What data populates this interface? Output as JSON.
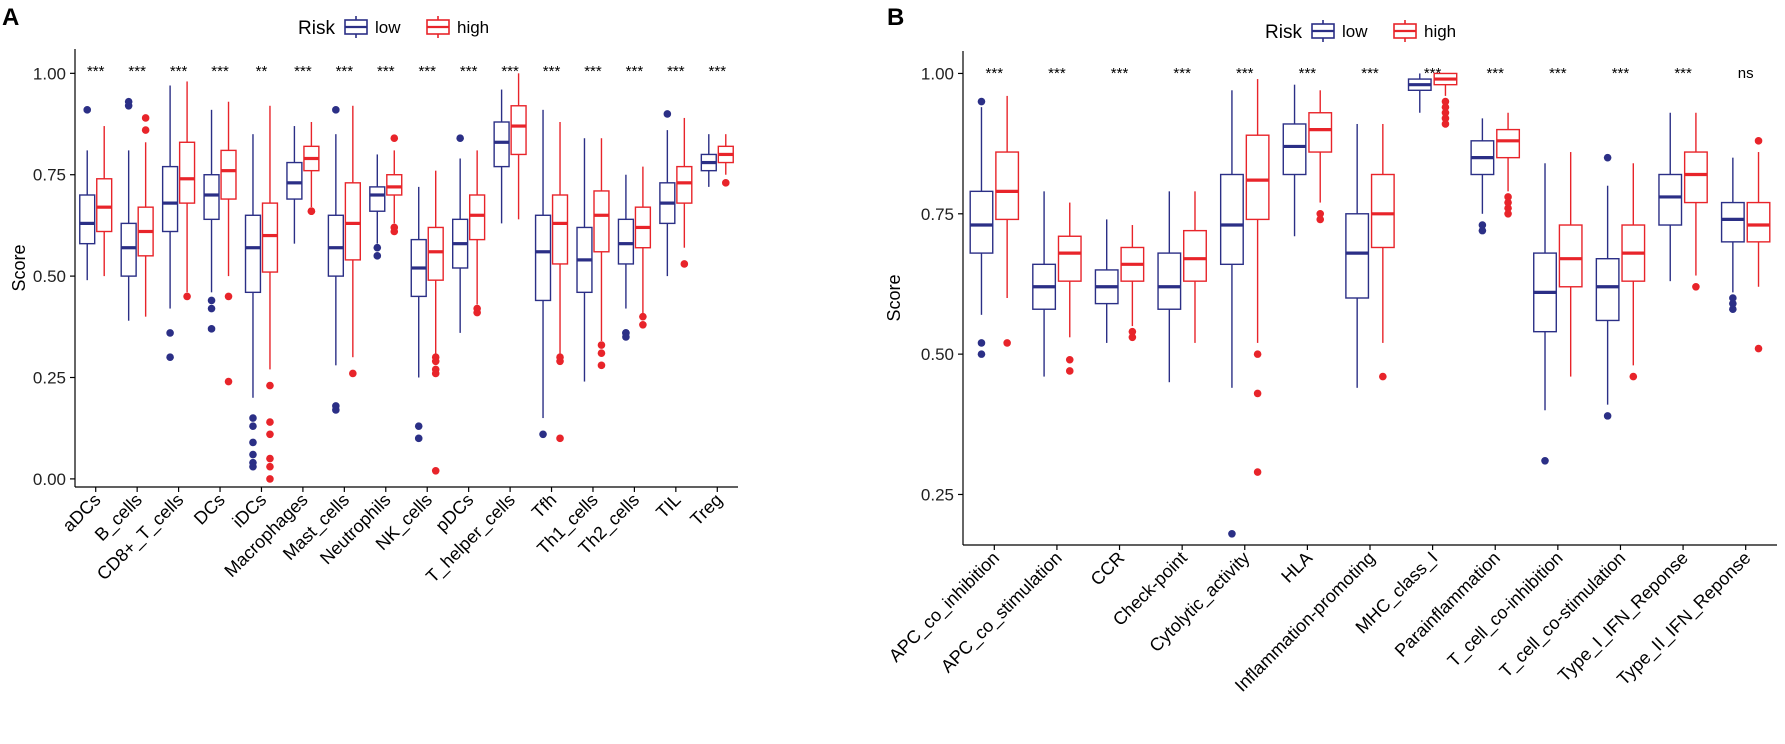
{
  "colors": {
    "low": "#2B2F86",
    "high": "#E8242A",
    "axis": "#000000"
  },
  "chart_data": [
    {
      "type": "boxplot",
      "panel": "A",
      "legend": {
        "title": "Risk",
        "entries": [
          "low",
          "high"
        ],
        "position": "top-center"
      },
      "ylabel": "Score",
      "ylim": [
        -0.02,
        1.06
      ],
      "yticks": [
        0.0,
        0.25,
        0.5,
        0.75,
        1.0
      ],
      "ytick_labels": [
        "0.00",
        "0.25",
        "0.50",
        "0.75",
        "1.00"
      ],
      "categories": [
        "aDCs",
        "B_cells",
        "CD8+_T_cells",
        "DCs",
        "iDCs",
        "Macrophages",
        "Mast_cells",
        "Neutrophils",
        "NK_cells",
        "pDCs",
        "T_helper_cells",
        "Tfh",
        "Th1_cells",
        "Th2_cells",
        "TIL",
        "Treg"
      ],
      "significance": [
        "***",
        "***",
        "***",
        "***",
        "**",
        "***",
        "***",
        "***",
        "***",
        "***",
        "***",
        "***",
        "***",
        "***",
        "***",
        "***"
      ],
      "series": [
        {
          "name": "low",
          "boxes": [
            {
              "wlo": 0.49,
              "q1": 0.58,
              "med": 0.63,
              "q3": 0.7,
              "whi": 0.81,
              "out": [
                0.91
              ]
            },
            {
              "wlo": 0.39,
              "q1": 0.5,
              "med": 0.57,
              "q3": 0.63,
              "whi": 0.81,
              "out": [
                0.92,
                0.93
              ]
            },
            {
              "wlo": 0.42,
              "q1": 0.61,
              "med": 0.68,
              "q3": 0.77,
              "whi": 0.97,
              "out": [
                0.36,
                0.3
              ]
            },
            {
              "wlo": 0.46,
              "q1": 0.64,
              "med": 0.7,
              "q3": 0.75,
              "whi": 0.91,
              "out": [
                0.44,
                0.42,
                0.37
              ]
            },
            {
              "wlo": 0.2,
              "q1": 0.46,
              "med": 0.57,
              "q3": 0.65,
              "whi": 0.85,
              "out": [
                0.15,
                0.13,
                0.09,
                0.06,
                0.04,
                0.03
              ]
            },
            {
              "wlo": 0.58,
              "q1": 0.69,
              "med": 0.73,
              "q3": 0.78,
              "whi": 0.87,
              "out": []
            },
            {
              "wlo": 0.28,
              "q1": 0.5,
              "med": 0.57,
              "q3": 0.65,
              "whi": 0.85,
              "out": [
                0.91,
                0.18,
                0.17
              ]
            },
            {
              "wlo": 0.58,
              "q1": 0.66,
              "med": 0.7,
              "q3": 0.72,
              "whi": 0.8,
              "out": [
                0.57,
                0.55
              ]
            },
            {
              "wlo": 0.25,
              "q1": 0.45,
              "med": 0.52,
              "q3": 0.59,
              "whi": 0.72,
              "out": [
                0.13,
                0.1
              ]
            },
            {
              "wlo": 0.36,
              "q1": 0.52,
              "med": 0.58,
              "q3": 0.64,
              "whi": 0.79,
              "out": [
                0.84
              ]
            },
            {
              "wlo": 0.63,
              "q1": 0.77,
              "med": 0.83,
              "q3": 0.88,
              "whi": 0.96,
              "out": []
            },
            {
              "wlo": 0.15,
              "q1": 0.44,
              "med": 0.56,
              "q3": 0.65,
              "whi": 0.91,
              "out": [
                0.11
              ]
            },
            {
              "wlo": 0.24,
              "q1": 0.46,
              "med": 0.54,
              "q3": 0.62,
              "whi": 0.84,
              "out": []
            },
            {
              "wlo": 0.42,
              "q1": 0.53,
              "med": 0.58,
              "q3": 0.64,
              "whi": 0.75,
              "out": [
                0.36,
                0.36,
                0.35
              ]
            },
            {
              "wlo": 0.5,
              "q1": 0.63,
              "med": 0.68,
              "q3": 0.73,
              "whi": 0.86,
              "out": [
                0.9
              ]
            },
            {
              "wlo": 0.72,
              "q1": 0.76,
              "med": 0.78,
              "q3": 0.8,
              "whi": 0.85,
              "out": []
            }
          ]
        },
        {
          "name": "high",
          "boxes": [
            {
              "wlo": 0.5,
              "q1": 0.61,
              "med": 0.67,
              "q3": 0.74,
              "whi": 0.87,
              "out": []
            },
            {
              "wlo": 0.4,
              "q1": 0.55,
              "med": 0.61,
              "q3": 0.67,
              "whi": 0.83,
              "out": [
                0.89,
                0.86
              ]
            },
            {
              "wlo": 0.46,
              "q1": 0.68,
              "med": 0.74,
              "q3": 0.83,
              "whi": 0.98,
              "out": [
                0.45
              ]
            },
            {
              "wlo": 0.5,
              "q1": 0.69,
              "med": 0.76,
              "q3": 0.81,
              "whi": 0.93,
              "out": [
                0.45,
                0.24
              ]
            },
            {
              "wlo": 0.27,
              "q1": 0.51,
              "med": 0.6,
              "q3": 0.68,
              "whi": 0.92,
              "out": [
                0.23,
                0.14,
                0.11,
                0.05,
                0.03,
                0.0
              ]
            },
            {
              "wlo": 0.67,
              "q1": 0.76,
              "med": 0.79,
              "q3": 0.82,
              "whi": 0.88,
              "out": [
                0.66,
                0.66
              ]
            },
            {
              "wlo": 0.3,
              "q1": 0.54,
              "med": 0.63,
              "q3": 0.73,
              "whi": 0.92,
              "out": [
                0.26
              ]
            },
            {
              "wlo": 0.63,
              "q1": 0.7,
              "med": 0.72,
              "q3": 0.75,
              "whi": 0.81,
              "out": [
                0.84,
                0.62,
                0.61
              ]
            },
            {
              "wlo": 0.3,
              "q1": 0.49,
              "med": 0.56,
              "q3": 0.62,
              "whi": 0.76,
              "out": [
                0.3,
                0.29,
                0.27,
                0.26,
                0.02
              ]
            },
            {
              "wlo": 0.43,
              "q1": 0.59,
              "med": 0.65,
              "q3": 0.7,
              "whi": 0.81,
              "out": [
                0.42,
                0.41
              ]
            },
            {
              "wlo": 0.64,
              "q1": 0.8,
              "med": 0.87,
              "q3": 0.92,
              "whi": 1.0,
              "out": []
            },
            {
              "wlo": 0.3,
              "q1": 0.53,
              "med": 0.63,
              "q3": 0.7,
              "whi": 0.88,
              "out": [
                0.3,
                0.29,
                0.1
              ]
            },
            {
              "wlo": 0.34,
              "q1": 0.56,
              "med": 0.65,
              "q3": 0.71,
              "whi": 0.84,
              "out": [
                0.33,
                0.31,
                0.28
              ]
            },
            {
              "wlo": 0.4,
              "q1": 0.57,
              "med": 0.62,
              "q3": 0.67,
              "whi": 0.77,
              "out": [
                0.4,
                0.38
              ]
            },
            {
              "wlo": 0.57,
              "q1": 0.68,
              "med": 0.73,
              "q3": 0.77,
              "whi": 0.89,
              "out": [
                0.53
              ]
            },
            {
              "wlo": 0.75,
              "q1": 0.78,
              "med": 0.8,
              "q3": 0.82,
              "whi": 0.85,
              "out": [
                0.73
              ]
            }
          ]
        }
      ]
    },
    {
      "type": "boxplot",
      "panel": "B",
      "legend": {
        "title": "Risk",
        "entries": [
          "low",
          "high"
        ],
        "position": "top-center"
      },
      "ylabel": "Score",
      "ylim": [
        0.16,
        1.04
      ],
      "yticks": [
        0.25,
        0.5,
        0.75,
        1.0
      ],
      "ytick_labels": [
        "0.25",
        "0.50",
        "0.75",
        "1.00"
      ],
      "categories": [
        "APC_co_inhibition",
        "APC_co_stimulation",
        "CCR",
        "Check-point",
        "Cytolytic_activity",
        "HLA",
        "Inflammation-promoting",
        "MHC_class_I",
        "Parainflammation",
        "T_cell_co-inhibition",
        "T_cell_co-stimulation",
        "Type_I_IFN_Reponse",
        "Type_II_IFN_Reponse"
      ],
      "significance": [
        "***",
        "***",
        "***",
        "***",
        "***",
        "***",
        "***",
        "***",
        "***",
        "***",
        "***",
        "***",
        "ns"
      ],
      "series": [
        {
          "name": "low",
          "boxes": [
            {
              "wlo": 0.57,
              "q1": 0.68,
              "med": 0.73,
              "q3": 0.79,
              "whi": 0.94,
              "out": [
                0.95,
                0.52,
                0.5
              ]
            },
            {
              "wlo": 0.46,
              "q1": 0.58,
              "med": 0.62,
              "q3": 0.66,
              "whi": 0.79,
              "out": []
            },
            {
              "wlo": 0.52,
              "q1": 0.59,
              "med": 0.62,
              "q3": 0.65,
              "whi": 0.74,
              "out": []
            },
            {
              "wlo": 0.45,
              "q1": 0.58,
              "med": 0.62,
              "q3": 0.68,
              "whi": 0.79,
              "out": []
            },
            {
              "wlo": 0.44,
              "q1": 0.66,
              "med": 0.73,
              "q3": 0.82,
              "whi": 0.97,
              "out": [
                0.18
              ]
            },
            {
              "wlo": 0.71,
              "q1": 0.82,
              "med": 0.87,
              "q3": 0.91,
              "whi": 0.98,
              "out": []
            },
            {
              "wlo": 0.44,
              "q1": 0.6,
              "med": 0.68,
              "q3": 0.75,
              "whi": 0.91,
              "out": []
            },
            {
              "wlo": 0.93,
              "q1": 0.97,
              "med": 0.98,
              "q3": 0.99,
              "whi": 1.0,
              "out": []
            },
            {
              "wlo": 0.75,
              "q1": 0.82,
              "med": 0.85,
              "q3": 0.88,
              "whi": 0.92,
              "out": [
                0.73,
                0.72
              ]
            },
            {
              "wlo": 0.4,
              "q1": 0.54,
              "med": 0.61,
              "q3": 0.68,
              "whi": 0.84,
              "out": [
                0.31
              ]
            },
            {
              "wlo": 0.41,
              "q1": 0.56,
              "med": 0.62,
              "q3": 0.67,
              "whi": 0.8,
              "out": [
                0.85,
                0.39
              ]
            },
            {
              "wlo": 0.63,
              "q1": 0.73,
              "med": 0.78,
              "q3": 0.82,
              "whi": 0.93,
              "out": []
            },
            {
              "wlo": 0.61,
              "q1": 0.7,
              "med": 0.74,
              "q3": 0.77,
              "whi": 0.85,
              "out": [
                0.6,
                0.59,
                0.58
              ]
            }
          ]
        },
        {
          "name": "high",
          "boxes": [
            {
              "wlo": 0.6,
              "q1": 0.74,
              "med": 0.79,
              "q3": 0.86,
              "whi": 0.96,
              "out": [
                0.52
              ]
            },
            {
              "wlo": 0.53,
              "q1": 0.63,
              "med": 0.68,
              "q3": 0.71,
              "whi": 0.77,
              "out": [
                0.49,
                0.47
              ]
            },
            {
              "wlo": 0.55,
              "q1": 0.63,
              "med": 0.66,
              "q3": 0.69,
              "whi": 0.73,
              "out": [
                0.54,
                0.53
              ]
            },
            {
              "wlo": 0.52,
              "q1": 0.63,
              "med": 0.67,
              "q3": 0.72,
              "whi": 0.79,
              "out": []
            },
            {
              "wlo": 0.52,
              "q1": 0.74,
              "med": 0.81,
              "q3": 0.89,
              "whi": 0.99,
              "out": [
                0.5,
                0.43,
                0.29
              ]
            },
            {
              "wlo": 0.77,
              "q1": 0.86,
              "med": 0.9,
              "q3": 0.93,
              "whi": 0.97,
              "out": [
                0.75,
                0.74
              ]
            },
            {
              "wlo": 0.52,
              "q1": 0.69,
              "med": 0.75,
              "q3": 0.82,
              "whi": 0.91,
              "out": [
                0.46
              ]
            },
            {
              "wlo": 0.96,
              "q1": 0.98,
              "med": 0.99,
              "q3": 1.0,
              "whi": 1.0,
              "out": [
                0.95,
                0.94,
                0.93,
                0.92,
                0.91
              ]
            },
            {
              "wlo": 0.79,
              "q1": 0.85,
              "med": 0.88,
              "q3": 0.9,
              "whi": 0.93,
              "out": [
                0.78,
                0.77,
                0.76,
                0.75
              ]
            },
            {
              "wlo": 0.46,
              "q1": 0.62,
              "med": 0.67,
              "q3": 0.73,
              "whi": 0.86,
              "out": []
            },
            {
              "wlo": 0.48,
              "q1": 0.63,
              "med": 0.68,
              "q3": 0.73,
              "whi": 0.84,
              "out": [
                0.46
              ]
            },
            {
              "wlo": 0.64,
              "q1": 0.77,
              "med": 0.82,
              "q3": 0.86,
              "whi": 0.93,
              "out": [
                0.62
              ]
            },
            {
              "wlo": 0.62,
              "q1": 0.7,
              "med": 0.73,
              "q3": 0.77,
              "whi": 0.86,
              "out": [
                0.88,
                0.51
              ]
            }
          ]
        }
      ]
    }
  ]
}
